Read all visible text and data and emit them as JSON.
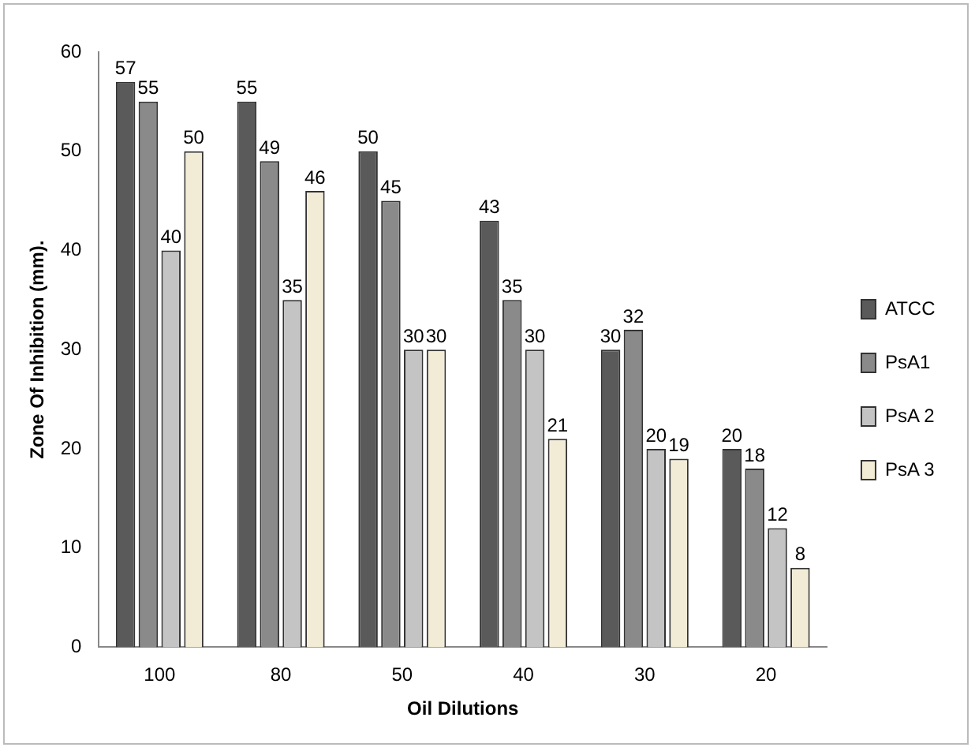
{
  "chart_data": {
    "type": "bar",
    "xlabel": "Oil Dilutions",
    "ylabel": "Zone Of Inhibition (mm).",
    "categories": [
      "100",
      "80",
      "50",
      "40",
      "30",
      "20"
    ],
    "series": [
      {
        "name": "ATCC",
        "color": "#5a5a5a",
        "values": [
          57,
          55,
          50,
          43,
          30,
          20
        ]
      },
      {
        "name": "PsA1",
        "color": "#8a8a8a",
        "values": [
          55,
          49,
          45,
          35,
          32,
          18
        ]
      },
      {
        "name": "PsA 2",
        "color": "#c4c4c4",
        "values": [
          40,
          35,
          30,
          30,
          20,
          12
        ]
      },
      {
        "name": "PsA 3",
        "color": "#f2ecd6",
        "values": [
          50,
          46,
          30,
          21,
          19,
          8
        ]
      }
    ],
    "ylim": [
      0,
      60
    ],
    "yticks": [
      0,
      10,
      20,
      30,
      40,
      50,
      60
    ],
    "grid": false,
    "legend": "right",
    "data_labels": true
  }
}
